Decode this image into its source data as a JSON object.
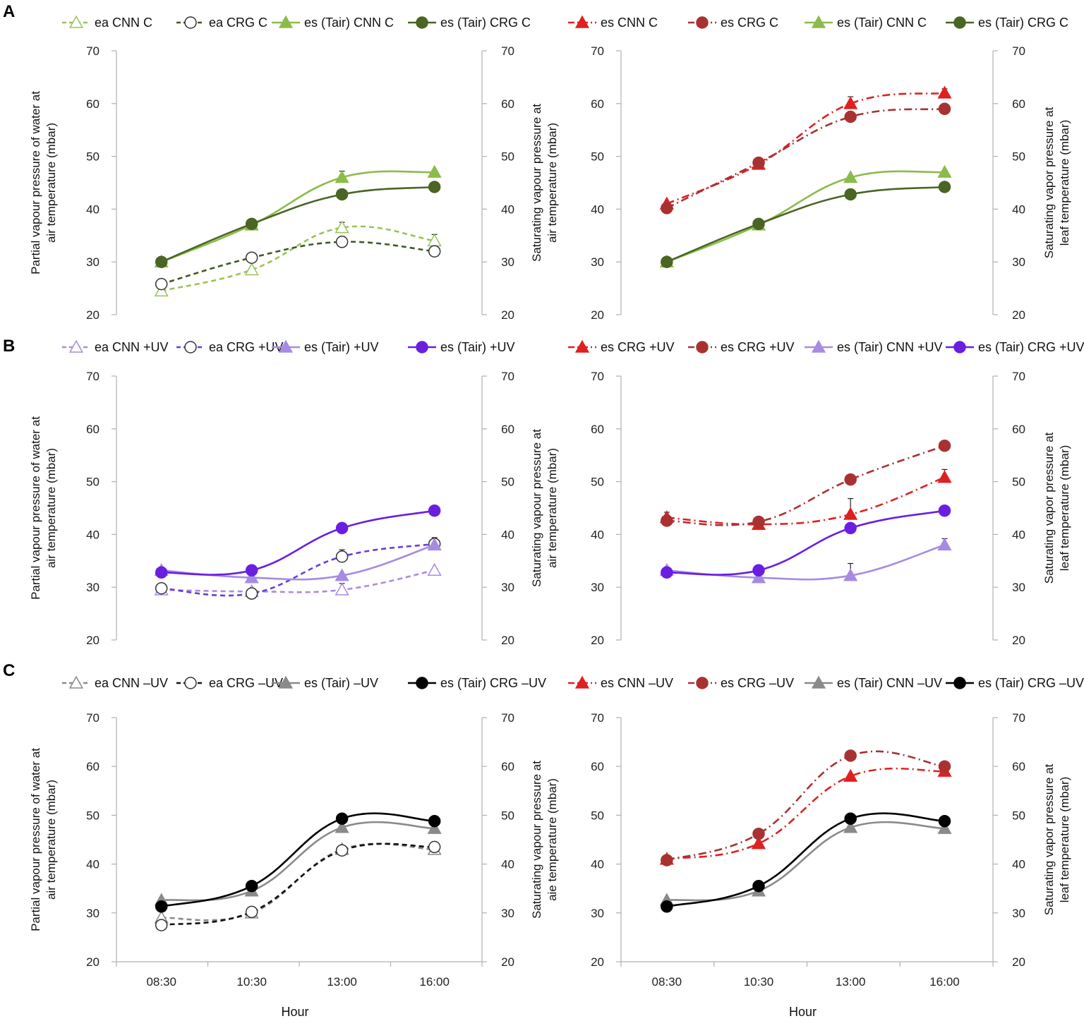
{
  "hours": [
    "08:30",
    "10:30",
    "13:00",
    "16:00"
  ],
  "x_label": "Hour",
  "chart_data": [
    {
      "panel": "A",
      "side": "left",
      "type": "line",
      "ylim": [
        20,
        70
      ],
      "yticks": [
        20,
        30,
        40,
        50,
        60,
        70
      ],
      "ylabel_left": [
        "Partial vapour pressure of water at",
        "air temperature (mbar)"
      ],
      "ylabel_right": [
        "Saturating vapour pressure at",
        "air temperature (mbar)"
      ],
      "show_x": false,
      "series": [
        {
          "name": "ea CNN C",
          "values": [
            24.5,
            28.5,
            36.5,
            34.0
          ],
          "color": "#9bc25a",
          "dash": "dashed",
          "marker": "triangle-open",
          "err": [
            0,
            0,
            1.0,
            1.2
          ]
        },
        {
          "name": "ea CRG C",
          "values": [
            25.8,
            30.8,
            33.8,
            32.0
          ],
          "color": "#3f5a1e",
          "dash": "dashed",
          "marker": "circle-open",
          "err": [
            0,
            0,
            1.0,
            0
          ]
        },
        {
          "name": "es (Tair) CNN C",
          "values": [
            30.0,
            37.0,
            46.0,
            47.0
          ],
          "color": "#8bbc4a",
          "dash": "solid",
          "marker": "triangle",
          "err": [
            0,
            0,
            1.2,
            0
          ]
        },
        {
          "name": "es (Tair) CRG C",
          "values": [
            30.0,
            37.2,
            42.8,
            44.2
          ],
          "color": "#4a6524",
          "dash": "solid",
          "marker": "circle",
          "err": [
            0,
            0,
            0,
            0
          ]
        }
      ]
    },
    {
      "panel": "A",
      "side": "right",
      "type": "line",
      "ylim": [
        20,
        70
      ],
      "yticks": [
        20,
        30,
        40,
        50,
        60,
        70
      ],
      "ylabel_right": [
        "Saturating vapor pressure at",
        "leaf temperature (mbar)"
      ],
      "show_x": false,
      "series": [
        {
          "name": "es CNN C",
          "values": [
            41.0,
            48.5,
            60.0,
            62.0
          ],
          "color": "#e02020",
          "dash": "dashdot",
          "marker": "triangle",
          "err": [
            0,
            0,
            1.3,
            0.8
          ]
        },
        {
          "name": "es CRG C",
          "values": [
            40.2,
            48.8,
            57.5,
            59.0
          ],
          "color": "#a83232",
          "dash": "dashdot",
          "marker": "circle",
          "err": [
            0.8,
            0,
            0.8,
            0.8
          ]
        },
        {
          "name": "es (Tair) CNN C",
          "values": [
            30.0,
            37.0,
            46.0,
            47.0
          ],
          "color": "#8bbc4a",
          "dash": "solid",
          "marker": "triangle",
          "err": [
            0,
            0,
            0,
            0
          ]
        },
        {
          "name": "es (Tair) CRG C",
          "values": [
            30.0,
            37.2,
            42.8,
            44.2
          ],
          "color": "#4a6524",
          "dash": "solid",
          "marker": "circle",
          "err": [
            0,
            0,
            0,
            0
          ]
        }
      ]
    },
    {
      "panel": "B",
      "side": "left",
      "type": "line",
      "ylim": [
        20,
        70
      ],
      "yticks": [
        20,
        30,
        40,
        50,
        60,
        70
      ],
      "ylabel_left": [
        "Partial vapour pressure of water at",
        "air temperature (mbar)"
      ],
      "ylabel_right": [
        "Saturating vapour pressure at",
        "air temperature (mbar)"
      ],
      "show_x": false,
      "series": [
        {
          "name": "ea CNN +UV",
          "values": [
            29.5,
            29.2,
            29.5,
            33.2
          ],
          "color": "#a98be0",
          "dash": "dashed",
          "marker": "triangle-open",
          "err": [
            0,
            0,
            1.2,
            0
          ]
        },
        {
          "name": "ea CRG +UV",
          "values": [
            29.8,
            28.8,
            35.8,
            38.2
          ],
          "color": "#6a3cd8",
          "dash": "dashed",
          "marker": "circle-open",
          "err": [
            0,
            0,
            1.3,
            1.2
          ]
        },
        {
          "name": "es (Tair) +UV",
          "values": [
            33.2,
            31.8,
            32.2,
            38.0
          ],
          "color": "#a78be2",
          "dash": "solid",
          "marker": "triangle",
          "err": [
            0,
            0,
            0,
            0
          ]
        },
        {
          "name": "es (Tair) +UV",
          "values": [
            32.8,
            33.2,
            41.2,
            44.5
          ],
          "color": "#6a1fe0",
          "dash": "solid",
          "marker": "circle",
          "err": [
            0,
            0,
            0,
            0
          ]
        }
      ]
    },
    {
      "panel": "B",
      "side": "right",
      "type": "line",
      "ylim": [
        20,
        70
      ],
      "yticks": [
        20,
        30,
        40,
        50,
        60,
        70
      ],
      "ylabel_right": [
        "Saturating vapor pressure at",
        "leaf temperature (mbar)"
      ],
      "show_x": false,
      "series": [
        {
          "name": "es CRG +UV",
          "values": [
            43.2,
            41.9,
            43.8,
            50.8
          ],
          "color": "#e02020",
          "dash": "dashdot",
          "marker": "triangle",
          "err": [
            1.0,
            0,
            3.0,
            1.5
          ]
        },
        {
          "name": "es CRG +UV",
          "values": [
            42.6,
            42.4,
            50.4,
            56.8
          ],
          "color": "#a83232",
          "dash": "dashdot",
          "marker": "circle",
          "err": [
            0,
            0,
            0,
            0
          ]
        },
        {
          "name": "es (Tair) CNN +UV",
          "values": [
            33.2,
            31.8,
            32.2,
            38.0
          ],
          "color": "#a78be2",
          "dash": "solid",
          "marker": "triangle",
          "err": [
            0,
            0,
            2.3,
            1.2
          ]
        },
        {
          "name": "es (Tair) CRG +UV",
          "values": [
            32.8,
            33.2,
            41.2,
            44.5
          ],
          "color": "#6a1fe0",
          "dash": "solid",
          "marker": "circle",
          "err": [
            0,
            0,
            0,
            0
          ]
        }
      ]
    },
    {
      "panel": "C",
      "side": "left",
      "type": "line",
      "ylim": [
        20,
        70
      ],
      "yticks": [
        20,
        30,
        40,
        50,
        60,
        70
      ],
      "ylabel_left": [
        "Partial vapour pressure of water at",
        "air temperature (mbar)"
      ],
      "ylabel_right": [
        "Saturating vapour pressure at",
        "aie temperature (mbar)"
      ],
      "show_x": true,
      "series": [
        {
          "name": "ea CNN –UV",
          "values": [
            29.0,
            30.0,
            43.0,
            43.0
          ],
          "color": "#8a8a8a",
          "dash": "dashed",
          "marker": "triangle-open",
          "err": [
            0,
            0,
            0,
            0
          ]
        },
        {
          "name": "ea CRG –UV",
          "values": [
            27.5,
            30.2,
            42.8,
            43.5
          ],
          "color": "#111111",
          "dash": "dashed",
          "marker": "circle-open",
          "err": [
            0,
            0,
            0,
            0
          ]
        },
        {
          "name": "es (Tair) –UV",
          "values": [
            32.6,
            34.5,
            47.5,
            47.3
          ],
          "color": "#8a8a8a",
          "dash": "solid",
          "marker": "triangle",
          "err": [
            0,
            1.0,
            1.0,
            0
          ]
        },
        {
          "name": "es (Tair) CRG –UV",
          "values": [
            31.3,
            35.5,
            49.3,
            48.8
          ],
          "color": "#000000",
          "dash": "solid",
          "marker": "circle",
          "err": [
            0,
            0,
            0,
            0
          ]
        }
      ]
    },
    {
      "panel": "C",
      "side": "right",
      "type": "line",
      "ylim": [
        20,
        70
      ],
      "yticks": [
        20,
        30,
        40,
        50,
        60,
        70
      ],
      "ylabel_right": [
        "Saturating vapor pressure at",
        "leaf temperature (mbar)"
      ],
      "show_x": true,
      "series": [
        {
          "name": "es CNN –UV",
          "values": [
            41.0,
            44.2,
            58.0,
            59.0
          ],
          "color": "#e02020",
          "dash": "dashdot",
          "marker": "triangle",
          "err": [
            0,
            0,
            0,
            0
          ]
        },
        {
          "name": "es CRG –UV",
          "values": [
            40.8,
            46.2,
            62.2,
            60.0
          ],
          "color": "#a83232",
          "dash": "dashdot",
          "marker": "circle",
          "err": [
            0,
            0,
            0,
            0
          ]
        },
        {
          "name": "es (Tair) CNN –UV",
          "values": [
            32.6,
            34.5,
            47.5,
            47.3
          ],
          "color": "#8a8a8a",
          "dash": "solid",
          "marker": "triangle",
          "err": [
            0,
            1.0,
            1.0,
            0
          ]
        },
        {
          "name": "es (Tair) CRG –UV",
          "values": [
            31.3,
            35.5,
            49.3,
            48.8
          ],
          "color": "#000000",
          "dash": "solid",
          "marker": "circle",
          "err": [
            0,
            0,
            0,
            0
          ]
        }
      ]
    }
  ]
}
